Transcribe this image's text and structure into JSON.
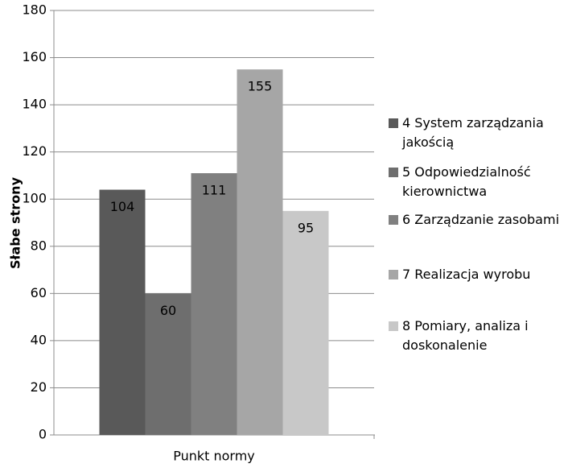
{
  "chart_data": {
    "type": "bar",
    "categories": [
      "Punkt normy"
    ],
    "x_label": "Punkt normy",
    "y_label": "Słabe strony",
    "series": [
      {
        "name": "4 System zarządzania jakością",
        "color": "#595959",
        "values": [
          104
        ]
      },
      {
        "name": "5 Odpowiedzialność kierownictwa",
        "color": "#6e6e6e",
        "values": [
          60
        ]
      },
      {
        "name": "6 Zarządzanie zasobami",
        "color": "#808080",
        "values": [
          111
        ]
      },
      {
        "name": "7 Realizacja wyrobu",
        "color": "#a6a6a6",
        "values": [
          155
        ]
      },
      {
        "name": "8 Pomiary, analiza i doskonalenie",
        "color": "#c8c8c8",
        "values": [
          95
        ]
      }
    ],
    "ylim": [
      0,
      180
    ],
    "yticks": [
      0,
      20,
      40,
      60,
      80,
      100,
      120,
      140,
      160,
      180
    ],
    "grid": true,
    "legend": "right",
    "data_labels": true
  }
}
